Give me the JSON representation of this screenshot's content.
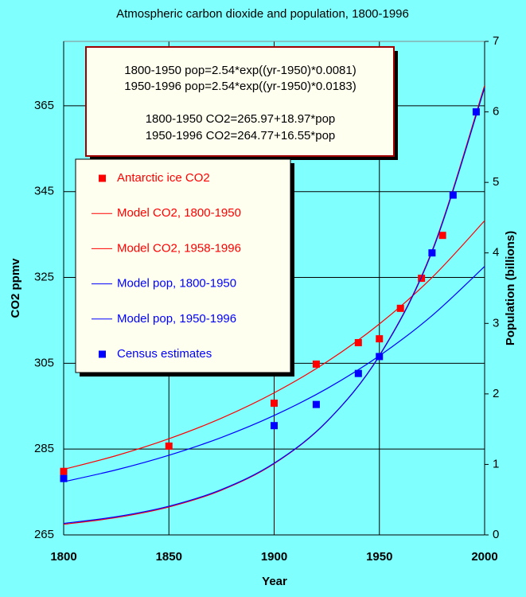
{
  "chart_data": {
    "type": "combo",
    "title": "Atmospheric carbon dioxide and population, 1800-1996",
    "x_label": "Year",
    "y_label": "CO2 ppmv",
    "y2_label": "Population (billions)",
    "annotations": [
      "1800-1950 pop=2.54*exp((yr-1950)*0.0081)",
      "1950-1996 pop=2.54*exp((yr-1950)*0.0183)",
      "1800-1950  CO2=265.97+18.97*pop",
      "1950-1996 CO2=264.77+16.55*pop"
    ],
    "xlim": [
      1800,
      2000
    ],
    "xticks": [
      1800,
      1850,
      1900,
      1950,
      2000
    ],
    "ylim": [
      265,
      380
    ],
    "yticks": [
      265,
      285,
      305,
      325,
      345,
      365
    ],
    "y2lim": [
      0,
      7
    ],
    "y2ticks": [
      0,
      1,
      2,
      3,
      4,
      5,
      6,
      7
    ],
    "grid": true,
    "series": [
      {
        "name": "Antarctic ice CO2",
        "type": "scatter",
        "color": "#ff0000",
        "x": [
          1800,
          1850,
          1900,
          1920,
          1940,
          1950,
          1960,
          1970,
          1980
        ],
        "values": [
          279.8,
          285.7,
          295.7,
          304.8,
          309.8,
          310.7,
          317.8,
          324.8,
          334.8
        ]
      },
      {
        "name": "Model CO2, 1800-1950",
        "type": "line",
        "color": "#ff0000",
        "x": [
          1800,
          1825,
          1850,
          1875,
          1900,
          1925,
          1950,
          1975,
          2000
        ],
        "values": [
          280.27,
          283.48,
          287.41,
          292.21,
          298.11,
          305.31,
          314.15,
          324.97,
          338.21
        ]
      },
      {
        "name": "Model CO2, 1958-1996",
        "type": "line",
        "color": "#ff0000",
        "x": [
          1800,
          1825,
          1850,
          1875,
          1900,
          1925,
          1950,
          1975,
          2000
        ],
        "values": [
          267.47,
          269.04,
          271.51,
          275.43,
          281.6,
          291.38,
          306.81,
          331.19,
          369.73
        ]
      },
      {
        "name": "Model pop, 1800-1950",
        "type": "line",
        "axis": "y2",
        "color": "#0000ff",
        "x": [
          1800,
          1825,
          1850,
          1875,
          1900,
          1925,
          1950,
          1975,
          2000
        ],
        "values": [
          0.754,
          0.923,
          1.13,
          1.383,
          1.694,
          2.074,
          2.54,
          3.11,
          3.808
        ]
      },
      {
        "name": "Model pop, 1950-1996",
        "type": "line",
        "axis": "y2",
        "color": "#0000ff",
        "x": [
          1800,
          1825,
          1850,
          1875,
          1900,
          1925,
          1950,
          1975,
          2000
        ],
        "values": [
          0.163,
          0.258,
          0.407,
          0.644,
          1.017,
          1.608,
          2.54,
          4.013,
          6.342
        ]
      },
      {
        "name": "Census estimates",
        "type": "scatter",
        "axis": "y2",
        "color": "#0000ff",
        "x": [
          1800,
          1900,
          1920,
          1940,
          1950,
          1975,
          1985,
          1996
        ],
        "values": [
          0.8,
          1.55,
          1.85,
          2.29,
          2.53,
          4.0,
          4.82,
          6.0
        ]
      }
    ]
  }
}
